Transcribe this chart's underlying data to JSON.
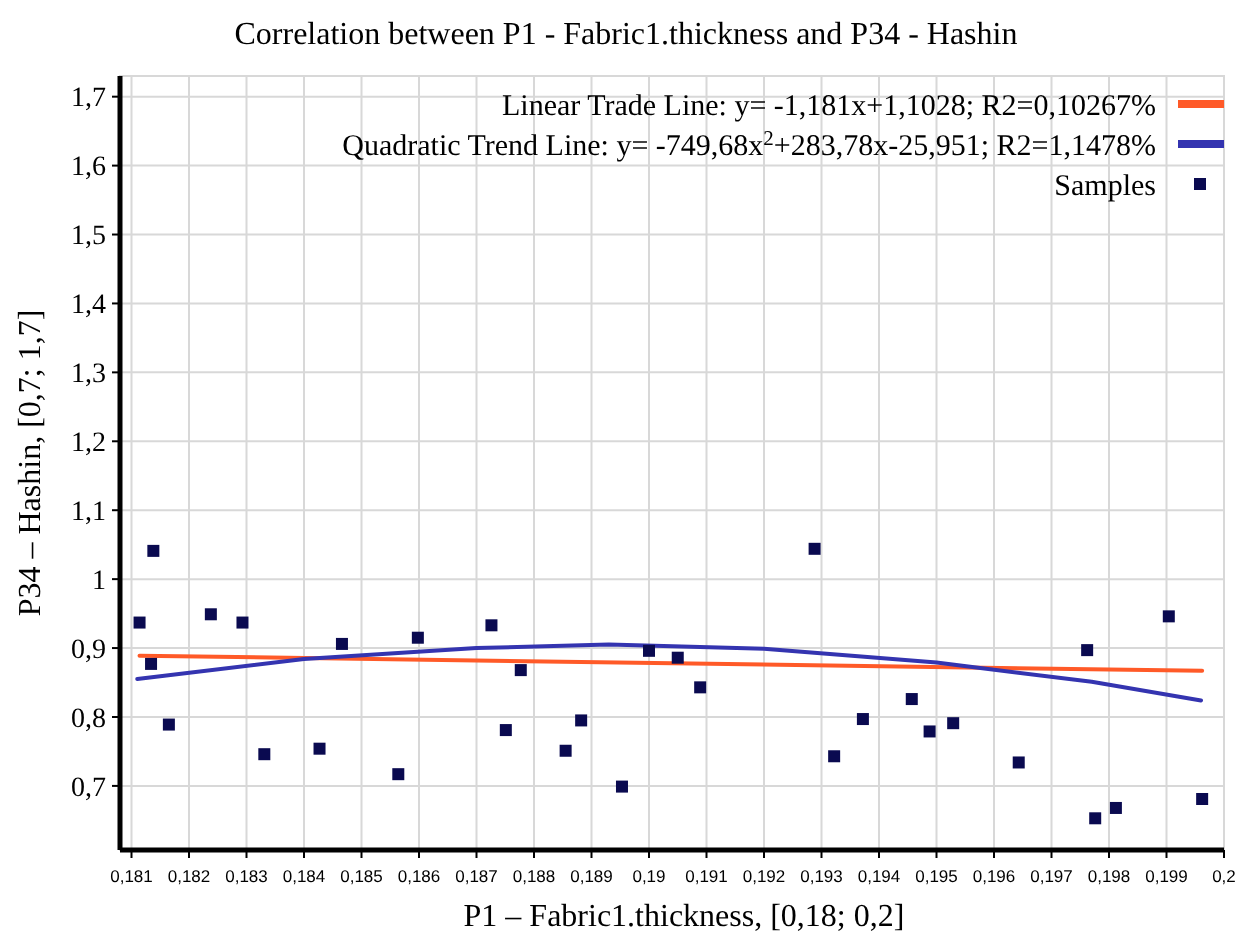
{
  "chart_data": {
    "type": "scatter",
    "title": "Correlation between P1 - Fabric1.thickness and P34 - Hashin",
    "xlabel": "P1 – Fabric1.thickness, [0,18; 0,2]",
    "ylabel": "P34 – Hashin, [0,7; 1,7]",
    "xlim": [
      0.1808,
      0.2
    ],
    "ylim": [
      0.607,
      1.73
    ],
    "xticks": [
      {
        "value": 0.181,
        "label": "0,181"
      },
      {
        "value": 0.182,
        "label": "0,182"
      },
      {
        "value": 0.183,
        "label": "0,183"
      },
      {
        "value": 0.184,
        "label": "0,184"
      },
      {
        "value": 0.185,
        "label": "0,185"
      },
      {
        "value": 0.186,
        "label": "0,186"
      },
      {
        "value": 0.187,
        "label": "0,187"
      },
      {
        "value": 0.188,
        "label": "0,188"
      },
      {
        "value": 0.189,
        "label": "0,189"
      },
      {
        "value": 0.19,
        "label": "0,19"
      },
      {
        "value": 0.191,
        "label": "0,191"
      },
      {
        "value": 0.192,
        "label": "0,192"
      },
      {
        "value": 0.193,
        "label": "0,193"
      },
      {
        "value": 0.194,
        "label": "0,194"
      },
      {
        "value": 0.195,
        "label": "0,195"
      },
      {
        "value": 0.196,
        "label": "0,196"
      },
      {
        "value": 0.197,
        "label": "0,197"
      },
      {
        "value": 0.198,
        "label": "0,198"
      },
      {
        "value": 0.199,
        "label": "0,199"
      },
      {
        "value": 0.2,
        "label": "0,2"
      }
    ],
    "yticks": [
      {
        "value": 0.7,
        "label": "0,7"
      },
      {
        "value": 0.8,
        "label": "0,8"
      },
      {
        "value": 0.9,
        "label": "0,9"
      },
      1,
      {
        "value": 1.1,
        "label": "1,1"
      },
      {
        "value": 1.2,
        "label": "1,2"
      },
      {
        "value": 1.3,
        "label": "1,3"
      },
      {
        "value": 1.4,
        "label": "1,4"
      },
      {
        "value": 1.5,
        "label": "1,5"
      },
      {
        "value": 1.6,
        "label": "1,6"
      },
      {
        "value": 1.7,
        "label": "1,7"
      }
    ],
    "grid": true,
    "legend": "top right",
    "series": [
      {
        "name": "Linear Trade Line: y= -1,181x+1,1028; R2=0,10267%",
        "type": "line",
        "color": "#ff5a28",
        "line_style": "solid",
        "x": [
          0.18114,
          0.19962
        ],
        "values": [
          0.889,
          0.867
        ]
      },
      {
        "name": "Quadratic Trend Line: y= -749,68x$^{2}$+283,78x-25,951; R2=1,1478%",
        "type": "line",
        "color": "#3434b0",
        "line_style": "solid",
        "x": [
          0.1811,
          0.184,
          0.187,
          0.1893,
          0.192,
          0.195,
          0.1977,
          0.1996
        ],
        "values": [
          0.855,
          0.884,
          0.9,
          0.905,
          0.899,
          0.879,
          0.851,
          0.824
        ]
      },
      {
        "name": "Samples",
        "color": "#0a0a50",
        "marker": "square",
        "x": [
          0.18114,
          0.18138,
          0.18134,
          0.18165,
          0.18238,
          0.18293,
          0.18331,
          0.18427,
          0.18466,
          0.18564,
          0.18598,
          0.18726,
          0.18751,
          0.18777,
          0.18855,
          0.18882,
          0.18953,
          0.19,
          0.1905,
          0.19089,
          0.19288,
          0.19322,
          0.19372,
          0.19457,
          0.19488,
          0.19529,
          0.19643,
          0.19762,
          0.19776,
          0.19812,
          0.19904,
          0.19962
        ],
        "values": [
          0.937,
          1.041,
          0.877,
          0.789,
          0.949,
          0.937,
          0.746,
          0.754,
          0.906,
          0.717,
          0.915,
          0.933,
          0.781,
          0.868,
          0.751,
          0.795,
          0.699,
          0.896,
          0.886,
          0.843,
          1.044,
          0.743,
          0.797,
          0.826,
          0.779,
          0.791,
          0.734,
          0.897,
          0.653,
          0.668,
          0.946,
          0.681
        ]
      }
    ]
  }
}
